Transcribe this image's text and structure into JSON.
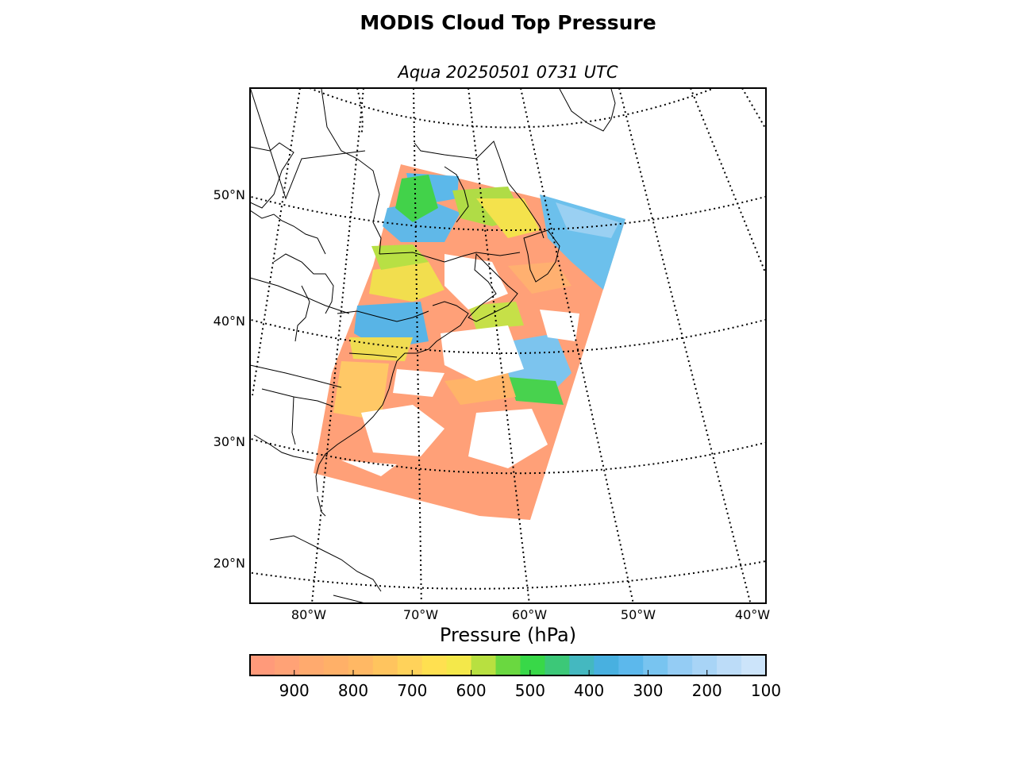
{
  "title": "MODIS Cloud Top Pressure",
  "subtitle": "Aqua 20250501 0731 UTC",
  "latitude_labels": [
    "50°N",
    "40°N",
    "30°N",
    "20°N"
  ],
  "longitude_labels": [
    "80°W",
    "70°W",
    "60°W",
    "50°W",
    "40°W"
  ],
  "colorbar": {
    "label": "Pressure (hPa)",
    "tick_labels": [
      "900",
      "800",
      "700",
      "600",
      "500",
      "400",
      "300",
      "200",
      "100"
    ],
    "range": [
      975,
      100
    ],
    "colors": [
      "#ff9a7a",
      "#ffa276",
      "#ffaa6e",
      "#ffb068",
      "#ffb864",
      "#ffc45e",
      "#ffd25a",
      "#ffe050",
      "#f4e84a",
      "#b8e040",
      "#6ad840",
      "#38d848",
      "#3cc878",
      "#44b8c0",
      "#48b0e0",
      "#5cb8ec",
      "#78c4f0",
      "#94ccf4",
      "#a8d4f6",
      "#bcdcf8",
      "#cce4fa"
    ]
  },
  "map_data": {
    "projection": "Lambert conformal",
    "graticule": {
      "meridians_deg_w": [
        80,
        70,
        60,
        50,
        40
      ],
      "parallels_deg_n": [
        20,
        30,
        40,
        50
      ]
    },
    "swath_dominant_values_hpa": [
      "900 (low cloud, orange) over the Atlantic",
      "300-400 (blue) over Newfoundland offshore and south of Nova Scotia",
      "500-700 (green/yellow) over Quebec and US east coast"
    ]
  }
}
